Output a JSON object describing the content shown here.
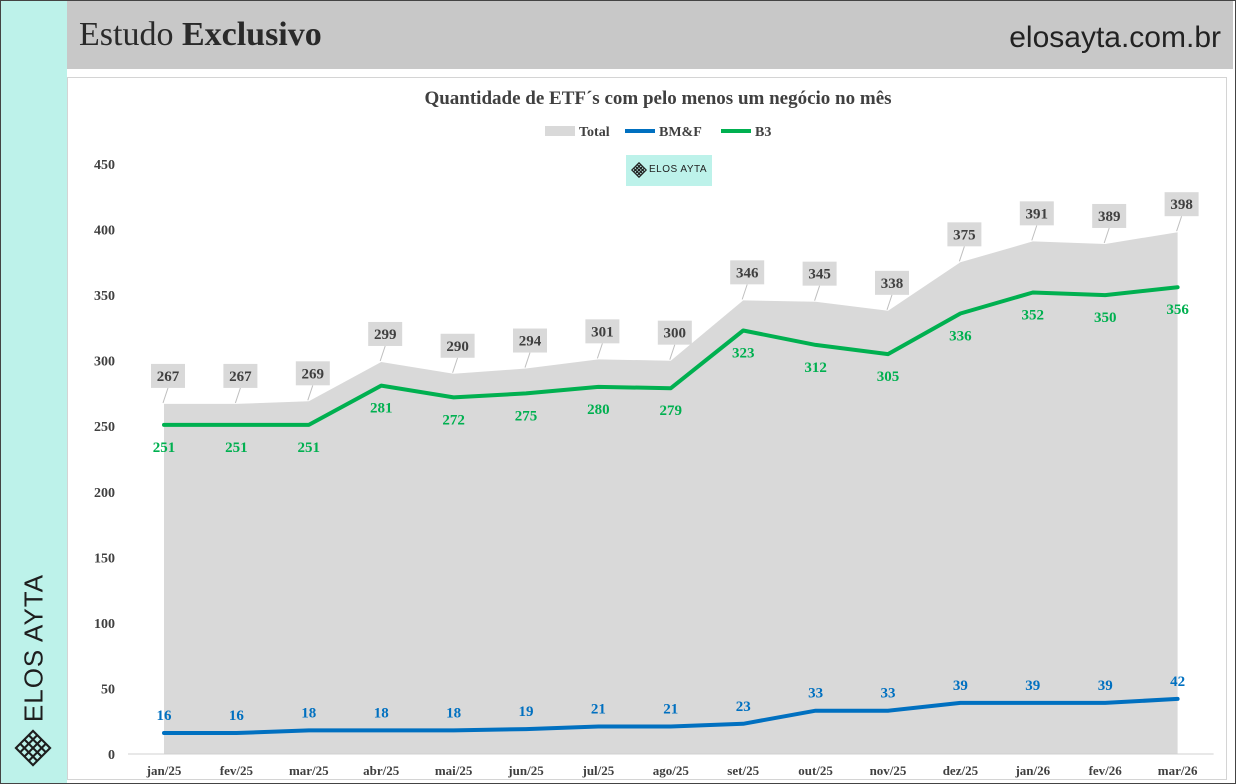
{
  "header": {
    "title_regular": "Estudo ",
    "title_bold": "Exclusivo",
    "site": "elosayta.com.br"
  },
  "sidebar": {
    "brand": "ELOS AYTA",
    "logo_icon": "lattice-diamond-icon"
  },
  "watermark": {
    "text": "ELOS AYTA",
    "icon": "lattice-diamond-icon",
    "bg_color": "#bdf2ea"
  },
  "colors": {
    "sidebar": "#bdf2ea",
    "header": "#c8c8c8",
    "total": "#d9d9d9",
    "bmf": "#0070c0",
    "b3": "#00b050",
    "label_box": "#d9d9d9"
  },
  "chart_data": {
    "type": "area",
    "title": "Quantidade de ETF´s com pelo menos um negócio no mês",
    "xlabel": "",
    "ylabel": "",
    "ylim": [
      0,
      450
    ],
    "yticks": [
      0,
      50,
      100,
      150,
      200,
      250,
      300,
      350,
      400,
      450
    ],
    "grid": false,
    "legend_position": "top-center",
    "categories": [
      "jan/25",
      "fev/25",
      "mar/25",
      "abr/25",
      "mai/25",
      "jun/25",
      "jul/25",
      "ago/25",
      "set/25",
      "out/25",
      "nov/25",
      "dez/25",
      "jan/26",
      "fev/26",
      "mar/26"
    ],
    "series": [
      {
        "name": "Total",
        "type": "area",
        "color": "#d9d9d9",
        "values": [
          267,
          267,
          269,
          299,
          290,
          294,
          301,
          300,
          346,
          345,
          338,
          375,
          391,
          389,
          398
        ]
      },
      {
        "name": "BM&F",
        "type": "line",
        "color": "#0070c0",
        "values": [
          16,
          16,
          18,
          18,
          18,
          19,
          21,
          21,
          23,
          33,
          33,
          39,
          39,
          39,
          42
        ]
      },
      {
        "name": "B3",
        "type": "line",
        "color": "#00b050",
        "values": [
          251,
          251,
          251,
          281,
          272,
          275,
          280,
          279,
          323,
          312,
          305,
          336,
          352,
          350,
          356
        ]
      }
    ]
  }
}
